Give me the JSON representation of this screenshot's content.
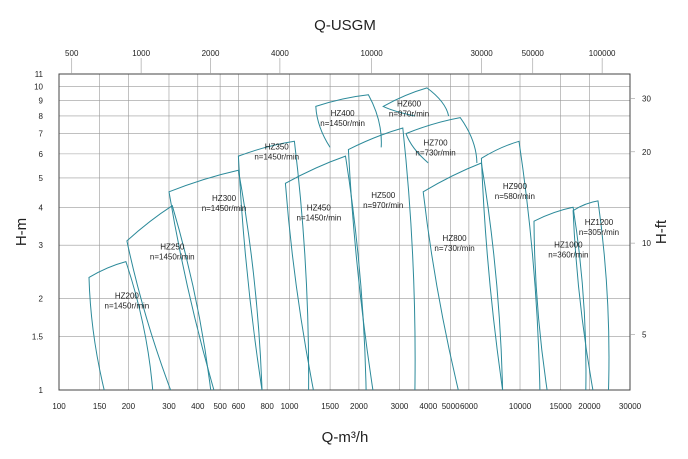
{
  "chart_data": {
    "type": "line",
    "title": "",
    "xlabel": "Q-m³/h",
    "ylabel": "H-m",
    "x2label": "Q-USGM",
    "y2label": "H-ft",
    "xscale": "log",
    "yscale": "log",
    "grid": true,
    "xlim": [
      100,
      30000
    ],
    "ylim": [
      1,
      11
    ],
    "x_ticks": [
      {
        "v": 100,
        "t": "100"
      },
      {
        "v": 150,
        "t": "150"
      },
      {
        "v": 200,
        "t": "200"
      },
      {
        "v": 300,
        "t": "300"
      },
      {
        "v": 400,
        "t": "400"
      },
      {
        "v": 500,
        "t": "500"
      },
      {
        "v": 600,
        "t": "600"
      },
      {
        "v": 800,
        "t": "800"
      },
      {
        "v": 1000,
        "t": "1000"
      },
      {
        "v": 1500,
        "t": "1500"
      },
      {
        "v": 2000,
        "t": "2000"
      },
      {
        "v": 3000,
        "t": "3000"
      },
      {
        "v": 4000,
        "t": "4000"
      },
      {
        "v": 5000,
        "t": "5000"
      },
      {
        "v": 6000,
        "t": "6000"
      },
      {
        "v": 10000,
        "t": "10000"
      },
      {
        "v": 15000,
        "t": "15000"
      },
      {
        "v": 20000,
        "t": "20000"
      },
      {
        "v": 30000,
        "t": "30000"
      }
    ],
    "y_ticks": [
      {
        "v": 1,
        "t": "1"
      },
      {
        "v": 1.5,
        "t": "1.5"
      },
      {
        "v": 2,
        "t": "2"
      },
      {
        "v": 3,
        "t": "3"
      },
      {
        "v": 4,
        "t": "4"
      },
      {
        "v": 5,
        "t": "5"
      },
      {
        "v": 6,
        "t": "6"
      },
      {
        "v": 7,
        "t": "7"
      },
      {
        "v": 8,
        "t": "8"
      },
      {
        "v": 9,
        "t": "9"
      },
      {
        "v": 10,
        "t": "10"
      },
      {
        "v": 11,
        "t": "11"
      }
    ],
    "x2_ticks": [
      {
        "v": 500,
        "t": "500"
      },
      {
        "v": 1000,
        "t": "1000"
      },
      {
        "v": 2000,
        "t": "2000"
      },
      {
        "v": 4000,
        "t": "4000"
      },
      {
        "v": 10000,
        "t": "10000"
      },
      {
        "v": 30000,
        "t": "30000"
      },
      {
        "v": 50000,
        "t": "50000"
      },
      {
        "v": 100000,
        "t": "100000"
      }
    ],
    "y2_ticks": [
      {
        "v": 5,
        "t": "5"
      },
      {
        "v": 10,
        "t": "10"
      },
      {
        "v": 20,
        "t": "20"
      },
      {
        "v": 30,
        "t": "30"
      }
    ],
    "series": [
      {
        "name": "HZ200",
        "speed": "n=1450r/min",
        "region": [
          [
            135,
            2.35
          ],
          [
            195,
            2.65
          ],
          [
            255,
            1.0
          ],
          [
            157,
            1.0
          ]
        ],
        "label_at": [
          197,
          2.0
        ]
      },
      {
        "name": "HZ250",
        "speed": "n=1450r/min",
        "region": [
          [
            197,
            3.1
          ],
          [
            310,
            4.05
          ],
          [
            455,
            1.0
          ],
          [
            305,
            1.0
          ]
        ],
        "label_at": [
          310,
          2.9
        ]
      },
      {
        "name": "HZ300",
        "speed": "n=1450r/min",
        "region": [
          [
            300,
            4.5
          ],
          [
            600,
            5.3
          ],
          [
            760,
            1.0
          ],
          [
            470,
            1.0
          ]
        ],
        "label_at": [
          520,
          4.2
        ]
      },
      {
        "name": "HZ350",
        "speed": "n=1450r/min",
        "region": [
          [
            600,
            5.9
          ],
          [
            1050,
            6.6
          ],
          [
            1210,
            1.0
          ],
          [
            760,
            1.0
          ]
        ],
        "label_at": [
          880,
          6.2
        ]
      },
      {
        "name": "HZ400",
        "speed": "n=1450r/min",
        "region": [
          [
            1300,
            8.6
          ],
          [
            2200,
            9.4
          ],
          [
            2500,
            6.3
          ],
          [
            1500,
            6.3
          ]
        ],
        "label_at": [
          1700,
          8.0
        ]
      },
      {
        "name": "HZ450",
        "speed": "n=1450r/min",
        "region": [
          [
            960,
            4.8
          ],
          [
            1750,
            5.9
          ],
          [
            2150,
            1.0
          ],
          [
            1270,
            1.0
          ]
        ],
        "label_at": [
          1340,
          3.9
        ]
      },
      {
        "name": "HZ500",
        "speed": "n=970r/min",
        "region": [
          [
            1800,
            6.2
          ],
          [
            3100,
            7.3
          ],
          [
            3500,
            1.0
          ],
          [
            2300,
            1.0
          ]
        ],
        "label_at": [
          2550,
          4.3
        ]
      },
      {
        "name": "HZ600",
        "speed": "n=970r/min",
        "region": [
          [
            2550,
            8.6
          ],
          [
            3950,
            9.9
          ],
          [
            4900,
            8.0
          ],
          [
            3500,
            8.0
          ]
        ],
        "label_at": [
          3300,
          8.6
        ]
      },
      {
        "name": "HZ700",
        "speed": "n=730r/min",
        "region": [
          [
            3200,
            7.0
          ],
          [
            5500,
            7.9
          ],
          [
            6500,
            5.6
          ],
          [
            4000,
            5.6
          ]
        ],
        "label_at": [
          4300,
          6.4
        ]
      },
      {
        "name": "HZ800",
        "speed": "n=730r/min",
        "region": [
          [
            3800,
            4.5
          ],
          [
            6800,
            5.6
          ],
          [
            8400,
            1.0
          ],
          [
            5400,
            1.0
          ]
        ],
        "label_at": [
          5200,
          3.1
        ]
      },
      {
        "name": "HZ900",
        "speed": "n=580r/min",
        "region": [
          [
            6800,
            5.8
          ],
          [
            9900,
            6.6
          ],
          [
            12200,
            1.0
          ],
          [
            8400,
            1.0
          ]
        ],
        "label_at": [
          9500,
          4.6
        ]
      },
      {
        "name": "HZ1000",
        "speed": "n=360r/min",
        "region": [
          [
            11500,
            3.6
          ],
          [
            17000,
            4.0
          ],
          [
            19300,
            1.0
          ],
          [
            13100,
            1.0
          ]
        ],
        "label_at": [
          16200,
          2.95
        ]
      },
      {
        "name": "HZ1200",
        "speed": "n=305r/min",
        "region": [
          [
            17000,
            3.9
          ],
          [
            21800,
            4.2
          ],
          [
            24200,
            1.0
          ],
          [
            20700,
            1.0
          ]
        ],
        "label_at": [
          22000,
          3.5
        ]
      }
    ]
  }
}
